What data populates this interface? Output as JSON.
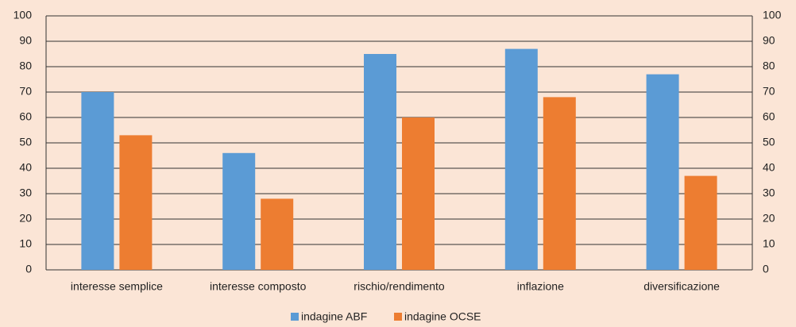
{
  "chart_data": {
    "type": "bar",
    "categories": [
      "interesse semplice",
      "interesse composto",
      "rischio/rendimento",
      "inflazione",
      "diversificazione"
    ],
    "series": [
      {
        "name": "indagine ABF",
        "color": "#5b9bd5",
        "values": [
          70,
          46,
          85,
          87,
          77
        ]
      },
      {
        "name": "indagine OCSE",
        "color": "#ed7d31",
        "values": [
          53,
          28,
          60,
          68,
          37
        ]
      }
    ],
    "ylim": [
      0,
      100
    ],
    "yticks": [
      0,
      10,
      20,
      30,
      40,
      50,
      60,
      70,
      80,
      90,
      100
    ],
    "y2lim": [
      0,
      100
    ],
    "y2ticks": [
      0,
      10,
      20,
      30,
      40,
      50,
      60,
      70,
      80,
      90,
      100
    ],
    "grid": true,
    "legend": "bottom"
  }
}
